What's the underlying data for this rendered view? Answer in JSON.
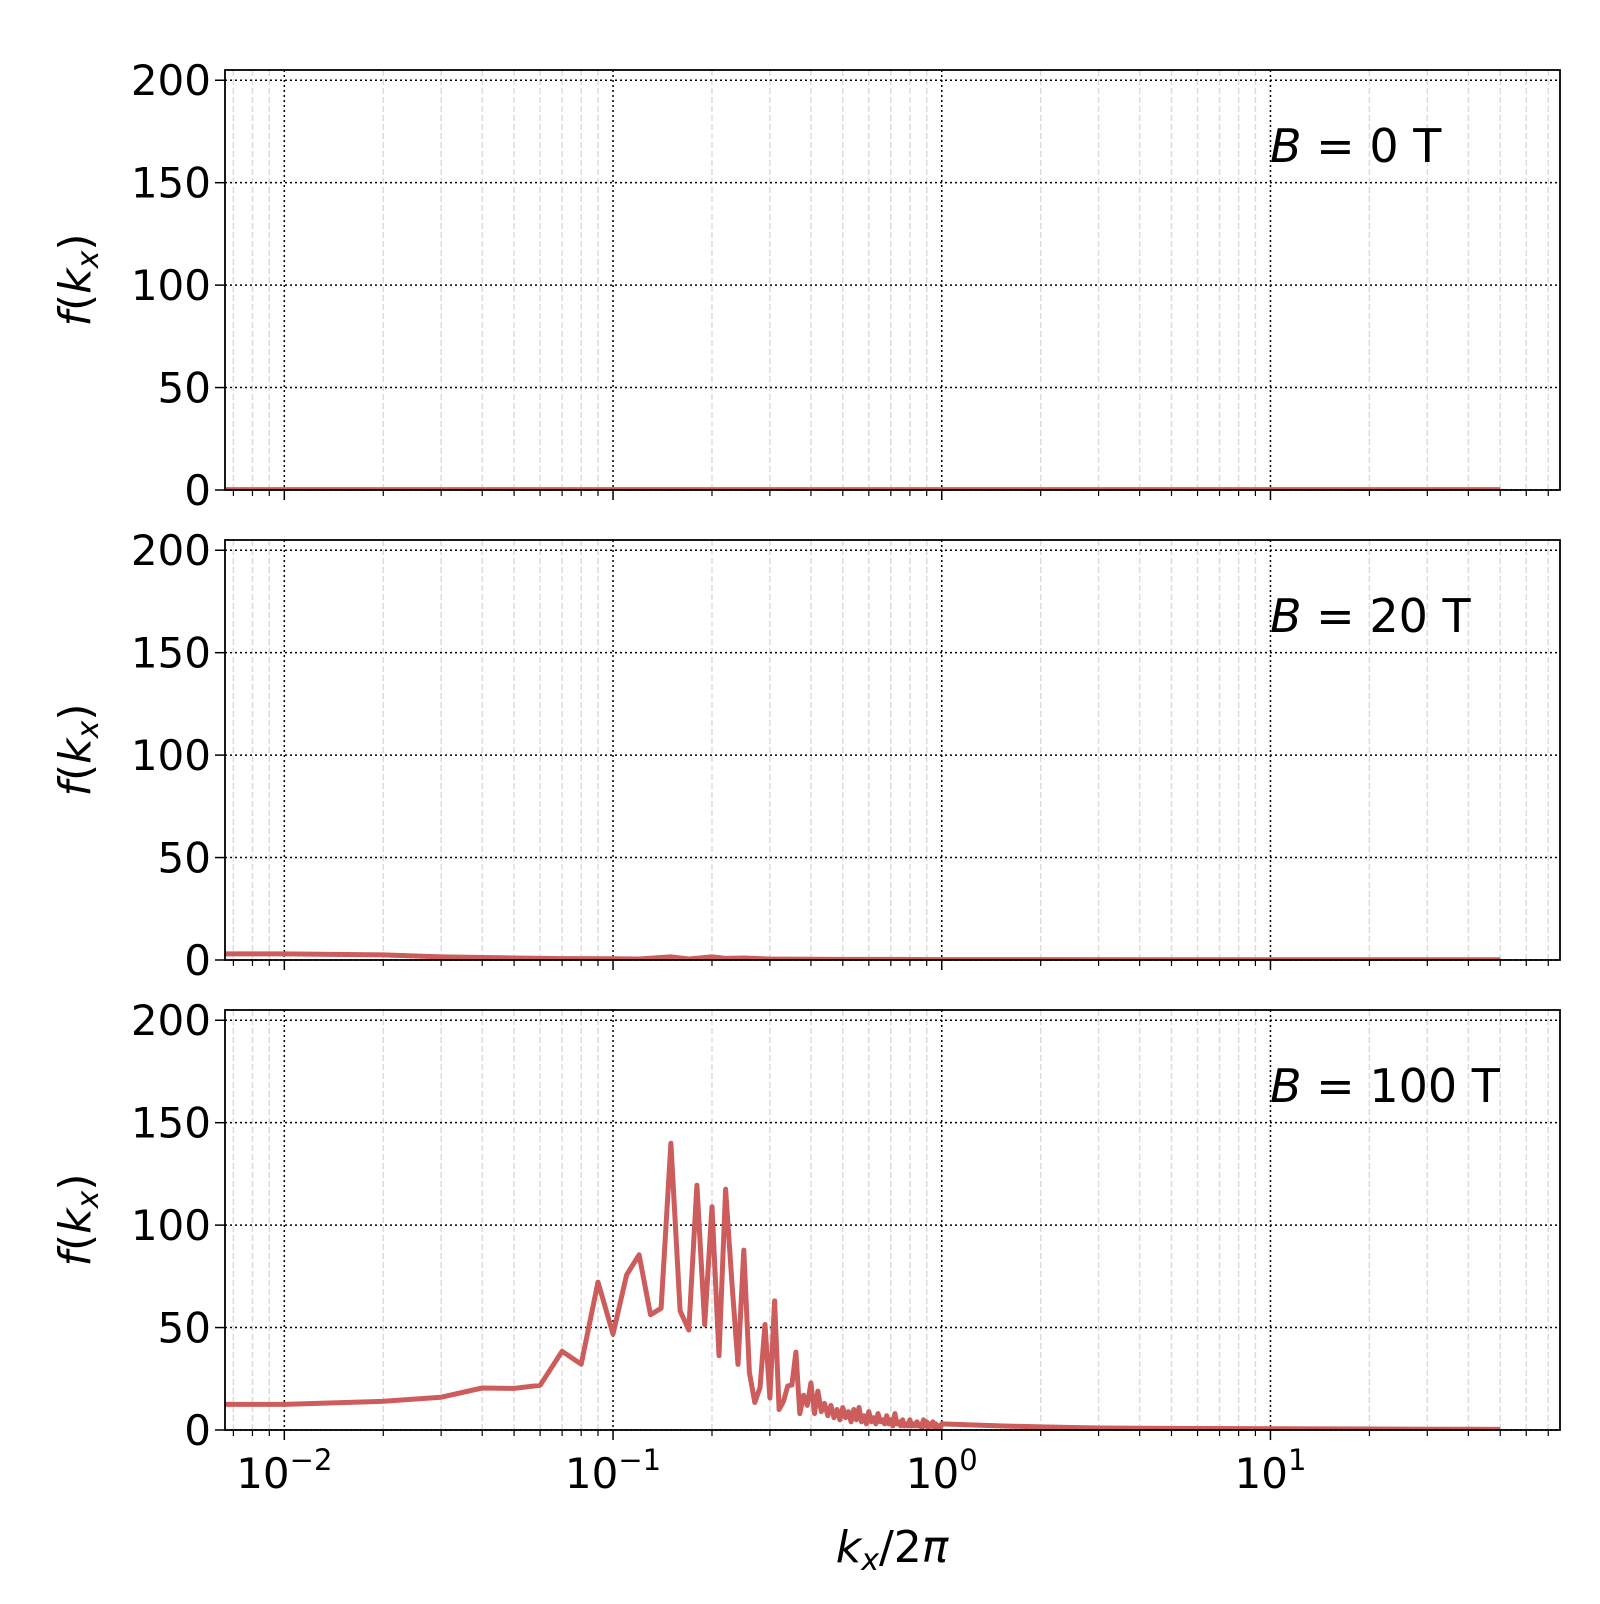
{
  "chart_data": {
    "type": "line",
    "layout": "3 stacked panels, shared x axis",
    "xscale": "log",
    "xlim": [
      0.0066,
      76
    ],
    "ylim": [
      0,
      205
    ],
    "grid": {
      "major": "dotted black",
      "minor_x": "light gray dashed"
    },
    "line_color": "#cd5c5c",
    "xlabel": "k_x/2π",
    "ylabel": "f(k_x)",
    "xticks": [
      {
        "value": 0.01,
        "base": "10",
        "exp": "−2"
      },
      {
        "value": 0.1,
        "base": "10",
        "exp": "−1"
      },
      {
        "value": 1,
        "base": "10",
        "exp": "0"
      },
      {
        "value": 10,
        "base": "10",
        "exp": "1"
      }
    ],
    "yticks": [
      0,
      50,
      100,
      150,
      200
    ],
    "panels": [
      {
        "annotation": {
          "var": "B",
          "text": " = 0 T"
        },
        "x": [
          0.005,
          0.01,
          0.1,
          1,
          10,
          50
        ],
        "y": [
          0.2,
          0.2,
          0.2,
          0.2,
          0.2,
          0.2
        ]
      },
      {
        "annotation": {
          "var": "B",
          "text": " = 20 T"
        },
        "x": [
          0.005,
          0.01,
          0.02,
          0.03,
          0.05,
          0.07,
          0.1,
          0.12,
          0.15,
          0.17,
          0.2,
          0.22,
          0.25,
          0.3,
          0.4,
          0.5,
          0.7,
          1,
          2,
          5,
          10,
          50
        ],
        "y": [
          3,
          3,
          2.5,
          1.5,
          1,
          0.7,
          0.6,
          0.5,
          1.5,
          0.5,
          1.5,
          0.8,
          1,
          0.5,
          0.4,
          0.3,
          0.3,
          0.2,
          0.2,
          0.1,
          0.1,
          0.1
        ]
      },
      {
        "annotation": {
          "var": "B",
          "text": " = 100 T"
        },
        "x": [
          0.005,
          0.01,
          0.02,
          0.03,
          0.04,
          0.05,
          0.06,
          0.07,
          0.08,
          0.09,
          0.1,
          0.11,
          0.12,
          0.13,
          0.14,
          0.15,
          0.16,
          0.17,
          0.18,
          0.19,
          0.2,
          0.21,
          0.22,
          0.23,
          0.24,
          0.25,
          0.26,
          0.27,
          0.28,
          0.29,
          0.3,
          0.31,
          0.32,
          0.33,
          0.34,
          0.35,
          0.36,
          0.37,
          0.38,
          0.39,
          0.4,
          0.41,
          0.42,
          0.43,
          0.44,
          0.45,
          0.46,
          0.47,
          0.48,
          0.49,
          0.5,
          0.51,
          0.52,
          0.53,
          0.54,
          0.55,
          0.56,
          0.57,
          0.58,
          0.59,
          0.6,
          0.61,
          0.62,
          0.63,
          0.64,
          0.65,
          0.66,
          0.67,
          0.68,
          0.69,
          0.7,
          0.71,
          0.72,
          0.73,
          0.74,
          0.75,
          0.76,
          0.77,
          0.78,
          0.79,
          0.8,
          0.81,
          0.82,
          0.83,
          0.84,
          0.85,
          0.86,
          0.87,
          0.88,
          0.89,
          0.9,
          0.91,
          0.92,
          0.93,
          0.94,
          0.95,
          0.96,
          0.97,
          0.98,
          0.99,
          1.0,
          1.5,
          2,
          3,
          5,
          10,
          20,
          30,
          40,
          50
        ],
        "y": [
          12.5,
          12.5,
          14,
          16,
          20.5,
          20.3,
          21.8,
          38.4,
          32.1,
          72.2,
          46.8,
          75.7,
          85.5,
          56.3,
          59.4,
          140,
          58.2,
          48.8,
          119.5,
          51.5,
          109,
          36.3,
          117.5,
          72,
          32,
          87.8,
          28,
          13.4,
          20.7,
          51.5,
          15.6,
          63,
          10,
          14,
          21.5,
          22,
          38,
          8,
          17,
          12,
          23,
          8,
          19,
          9,
          13,
          7,
          12,
          6,
          10,
          5,
          11,
          6,
          9,
          4,
          10,
          5,
          11,
          4,
          7,
          3,
          9,
          4,
          6,
          3,
          8,
          4,
          5,
          3,
          7,
          3,
          5,
          2,
          8,
          3,
          4,
          2,
          5,
          2,
          3,
          2,
          5,
          2,
          3,
          2,
          4,
          2,
          3,
          1,
          5,
          2,
          4,
          1,
          3,
          2,
          4,
          1,
          3,
          1,
          2,
          1,
          3,
          2,
          1.5,
          1,
          0.8,
          0.6,
          0.5,
          0.4,
          0.4,
          0.3
        ]
      }
    ]
  }
}
